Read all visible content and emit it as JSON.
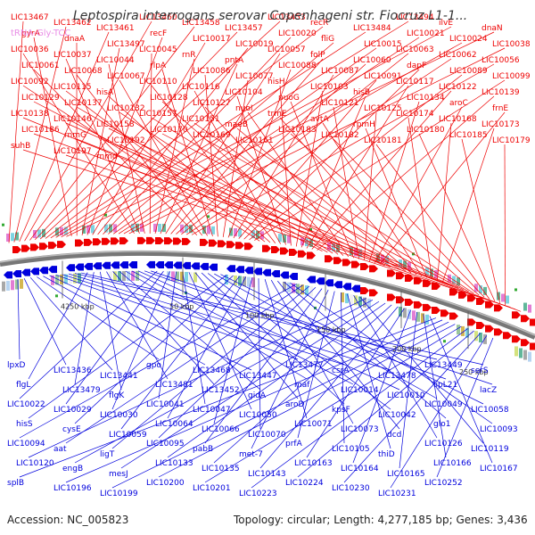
{
  "title": "Leptospira interrogans serovar Copenhageni str. Fiocruz L1-1...",
  "trna_label": "tRNA-Gly-TCC",
  "footer": {
    "accession": "Accession: NC_005823",
    "topology": "Topology: circular; Length: 4,277,185 bp; Genes: 3,436"
  },
  "colors": {
    "forward": "#ee0000",
    "reverse": "#0000dd",
    "backbone": "#777777",
    "trna": "#e98ee6",
    "bin": "#33aa33"
  },
  "genome_length_bp": 4277185,
  "ruler_ticks": [
    "4250 kbp",
    "50 kbp",
    "100 kbp",
    "150 kbp",
    "200 kbp",
    "250 kbp"
  ],
  "forward_labels": [
    "LIC13467",
    "LIC13462",
    "LIC13461",
    "LIC13460",
    "LIC13458",
    "LIC13457",
    "LIC13453",
    "recR",
    "LIC13484",
    "LIC13494",
    "ilvE",
    "dnaN",
    "gyrA",
    "dnaA",
    "LIC13497",
    "recF",
    "LIC10017",
    "LIC10019",
    "LIC10020",
    "fliG",
    "LIC10015",
    "LIC10021",
    "LIC10024",
    "LIC10038",
    "LIC10036",
    "LIC10037",
    "LIC10044",
    "LIC10045",
    "rnR",
    "pntA",
    "LIC10057",
    "folP",
    "LIC10060",
    "LIC10063",
    "LIC10062",
    "LIC10056",
    "LIC10061",
    "LIC10068",
    "LIC10067",
    "rlpA",
    "LIC10086",
    "LIC10077",
    "LIC10088",
    "LIC10087",
    "LIC10091",
    "dapF",
    "LIC10089",
    "LIC10099",
    "LIC10092",
    "LIC10115",
    "hisA",
    "LIC10110",
    "LIC10116",
    "LIC10104",
    "hisH",
    "LIC10103",
    "hisB",
    "LIC10117",
    "LIC10122",
    "LIC10139",
    "LIC10129",
    "LIC10137",
    "LIC10132",
    "LIC10128",
    "LIC10127",
    "nuoI",
    "nuoG",
    "LIC10121",
    "LIC10125",
    "LIC10134",
    "aroC",
    "frnE",
    "LIC10138",
    "LIC10146",
    "LIC10158",
    "LIC10157",
    "LIC10151",
    "maeB",
    "trmE",
    "avtA",
    "rpmH",
    "LIC10174",
    "LIC10168",
    "LIC10173",
    "LIC10186",
    "rnmG",
    "LIC10192",
    "LIC10170",
    "LIC10169",
    "LIC10161",
    "LIC10183",
    "LIC10182",
    "LIC10181",
    "LIC10180",
    "LIC10185",
    "LIC10179",
    "suhB",
    "LIC10197",
    "rnmd"
  ],
  "reverse_labels": [
    "lpxD",
    "LIC13436",
    "LIC13441",
    "gpo",
    "LIC13468",
    "LIC13447",
    "LIC13477",
    "csrA",
    "LIC13478",
    "LIC13449",
    "serS",
    "flgL",
    "LIC13479",
    "flgK",
    "LIC13481",
    "LIC13452",
    "gidA",
    "maf",
    "LIC10014",
    "LIC10010",
    "lipL21",
    "lacZ",
    "LIC10022",
    "LIC10029",
    "LIC10030",
    "LIC10041",
    "LIC10047",
    "LIC10050",
    "aroD",
    "kpsF",
    "LIC10042",
    "LIC10049",
    "LIC10058",
    "hisS",
    "cysE",
    "LIC10059",
    "LIC10064",
    "LIC10066",
    "LIC10070",
    "LIC10071",
    "LIC10073",
    "dcd",
    "glo1",
    "LIC10093",
    "LIC10094",
    "aat",
    "ligT",
    "LIC10095",
    "pabB",
    "met-7",
    "prfA",
    "LIC10105",
    "thiD",
    "LIC10126",
    "LIC10119",
    "LIC10120",
    "engB",
    "mesJ",
    "LIC10133",
    "LIC10135",
    "LIC10143",
    "LIC10163",
    "LIC10164",
    "LIC10165",
    "LIC10166",
    "LIC10167",
    "splB",
    "LIC10196",
    "LIC10199",
    "LIC10200",
    "LIC10201",
    "LIC10223",
    "LIC10224",
    "LIC10230",
    "LIC10231",
    "LIC10252"
  ]
}
